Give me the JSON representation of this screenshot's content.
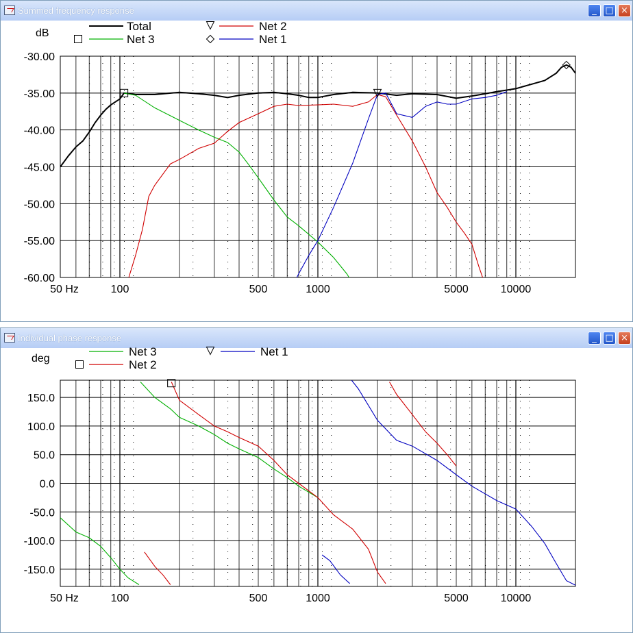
{
  "windows": [
    {
      "title": "Summed frequency response",
      "min": "_",
      "max": "□",
      "close": "×"
    },
    {
      "title": "Individual phase response",
      "min": "_",
      "max": "□",
      "close": "×"
    }
  ],
  "chart_data": [
    {
      "type": "line",
      "ylabel": "dB",
      "x_scale": "log",
      "xlim": [
        50,
        20000
      ],
      "ylim": [
        -60,
        -30
      ],
      "yticks": [
        "-30.00",
        "-35.00",
        "-40.00",
        "-45.00",
        "-50.00",
        "-55.00",
        "-60.00"
      ],
      "ytick_values": [
        -30,
        -35,
        -40,
        -45,
        -50,
        -55,
        -60
      ],
      "xticks": [
        "50 Hz",
        "100",
        "500",
        "1000",
        "5000",
        "10000"
      ],
      "xtick_values": [
        50,
        100,
        500,
        1000,
        5000,
        10000
      ],
      "grid": true,
      "legend_placement": "top",
      "series": [
        {
          "name": "Total",
          "color": "#000000",
          "marker": "none",
          "points": [
            [
              50,
              -45
            ],
            [
              55,
              -43.5
            ],
            [
              60,
              -42.3
            ],
            [
              65,
              -41.5
            ],
            [
              70,
              -40.3
            ],
            [
              75,
              -39
            ],
            [
              80,
              -38
            ],
            [
              85,
              -37.2
            ],
            [
              90,
              -36.6
            ],
            [
              100,
              -35.8
            ],
            [
              105,
              -35
            ],
            [
              120,
              -35.2
            ],
            [
              150,
              -35.2
            ],
            [
              200,
              -34.9
            ],
            [
              250,
              -35.1
            ],
            [
              300,
              -35.3
            ],
            [
              350,
              -35.6
            ],
            [
              400,
              -35.3
            ],
            [
              500,
              -35
            ],
            [
              600,
              -34.9
            ],
            [
              700,
              -35.1
            ],
            [
              800,
              -35.3
            ],
            [
              900,
              -35.6
            ],
            [
              1000,
              -35.6
            ],
            [
              1200,
              -35.2
            ],
            [
              1500,
              -34.9
            ],
            [
              2000,
              -35
            ],
            [
              2500,
              -35.3
            ],
            [
              3000,
              -35.1
            ],
            [
              4000,
              -35.2
            ],
            [
              5000,
              -35.7
            ],
            [
              6000,
              -35.4
            ],
            [
              7000,
              -35.1
            ],
            [
              8000,
              -34.8
            ],
            [
              9000,
              -34.6
            ],
            [
              10000,
              -34.4
            ],
            [
              12000,
              -33.8
            ],
            [
              14000,
              -33.3
            ],
            [
              16000,
              -32.3
            ],
            [
              17000,
              -31.5
            ],
            [
              18000,
              -31.2
            ],
            [
              19000,
              -31.5
            ],
            [
              20000,
              -32.3
            ]
          ]
        },
        {
          "name": "Net 3",
          "color": "#00b000",
          "marker": "square",
          "points": [
            [
              105,
              -35
            ],
            [
              120,
              -35.3
            ],
            [
              150,
              -37
            ],
            [
              200,
              -38.7
            ],
            [
              250,
              -40
            ],
            [
              300,
              -41
            ],
            [
              350,
              -41.7
            ],
            [
              400,
              -43
            ],
            [
              450,
              -44.8
            ],
            [
              500,
              -46.5
            ],
            [
              600,
              -49.5
            ],
            [
              700,
              -51.8
            ],
            [
              800,
              -53
            ],
            [
              1000,
              -55.2
            ],
            [
              1200,
              -57.3
            ],
            [
              1400,
              -59.5
            ],
            [
              1500,
              -60.8
            ]
          ]
        },
        {
          "name": "Net 2",
          "color": "#d00000",
          "marker": "triangle",
          "points": [
            [
              108,
              -61
            ],
            [
              120,
              -57
            ],
            [
              130,
              -53.5
            ],
            [
              140,
              -49
            ],
            [
              150,
              -47.5
            ],
            [
              180,
              -44.6
            ],
            [
              200,
              -44
            ],
            [
              250,
              -42.5
            ],
            [
              300,
              -41.8
            ],
            [
              350,
              -40.2
            ],
            [
              400,
              -39
            ],
            [
              500,
              -37.8
            ],
            [
              600,
              -36.8
            ],
            [
              700,
              -36.5
            ],
            [
              800,
              -36.7
            ],
            [
              1000,
              -36.6
            ],
            [
              1200,
              -36.5
            ],
            [
              1500,
              -36.8
            ],
            [
              1800,
              -36.2
            ],
            [
              2000,
              -35.2
            ],
            [
              2200,
              -35.5
            ],
            [
              2500,
              -38
            ],
            [
              3000,
              -41.5
            ],
            [
              3500,
              -45
            ],
            [
              4000,
              -48.5
            ],
            [
              4500,
              -50.5
            ],
            [
              5000,
              -52.5
            ],
            [
              5500,
              -54
            ],
            [
              6000,
              -55.5
            ],
            [
              6500,
              -58.5
            ],
            [
              7000,
              -61
            ]
          ]
        },
        {
          "name": "Net 1",
          "color": "#0000c0",
          "marker": "diamond",
          "points": [
            [
              750,
              -61
            ],
            [
              800,
              -59.5
            ],
            [
              900,
              -57
            ],
            [
              1000,
              -55
            ],
            [
              1200,
              -50.5
            ],
            [
              1500,
              -44.5
            ],
            [
              1800,
              -38.5
            ],
            [
              2000,
              -35.2
            ],
            [
              2200,
              -35
            ],
            [
              2500,
              -37.8
            ],
            [
              3000,
              -38.3
            ],
            [
              3500,
              -36.8
            ],
            [
              4000,
              -36.2
            ],
            [
              4500,
              -36.5
            ],
            [
              5000,
              -36.5
            ],
            [
              6000,
              -35.8
            ],
            [
              7000,
              -35.6
            ],
            [
              8000,
              -35.3
            ],
            [
              9000,
              -34.8
            ]
          ]
        }
      ]
    },
    {
      "type": "line",
      "ylabel": "deg",
      "x_scale": "log",
      "xlim": [
        50,
        20000
      ],
      "ylim": [
        -180,
        180
      ],
      "yticks": [
        "150.0",
        "100.0",
        "50.0",
        "0.0",
        "-50.0",
        "-100.0",
        "-150.0"
      ],
      "ytick_values": [
        150,
        100,
        50,
        0,
        -50,
        -100,
        -150
      ],
      "xticks": [
        "50 Hz",
        "100",
        "500",
        "1000",
        "5000",
        "10000"
      ],
      "xtick_values": [
        50,
        100,
        500,
        1000,
        5000,
        10000
      ],
      "grid": true,
      "legend_placement": "top",
      "series": [
        {
          "name": "Net 3",
          "color": "#00b000",
          "marker": "none",
          "segments": [
            [
              [
                50,
                -60
              ],
              [
                60,
                -85
              ],
              [
                70,
                -95
              ],
              [
                80,
                -110
              ],
              [
                90,
                -130
              ],
              [
                100,
                -150
              ],
              [
                110,
                -165
              ],
              [
                125,
                -177
              ]
            ],
            [
              [
                127,
                177
              ],
              [
                150,
                150
              ],
              [
                180,
                130
              ],
              [
                200,
                115
              ],
              [
                250,
                100
              ],
              [
                300,
                85
              ],
              [
                350,
                70
              ],
              [
                400,
                60
              ],
              [
                500,
                45
              ],
              [
                600,
                25
              ],
              [
                700,
                10
              ],
              [
                800,
                -5
              ],
              [
                1000,
                -25
              ]
            ]
          ]
        },
        {
          "name": "Net 2",
          "color": "#d00000",
          "marker": "square",
          "segments": [
            [
              [
                133,
                -120
              ],
              [
                150,
                -145
              ],
              [
                165,
                -160
              ],
              [
                180,
                -177
              ]
            ],
            [
              [
                182,
                177
              ],
              [
                200,
                145
              ],
              [
                250,
                120
              ],
              [
                300,
                100
              ],
              [
                350,
                90
              ],
              [
                400,
                80
              ],
              [
                500,
                65
              ],
              [
                600,
                40
              ],
              [
                700,
                15
              ],
              [
                800,
                0
              ],
              [
                1000,
                -25
              ],
              [
                1200,
                -55
              ],
              [
                1500,
                -80
              ],
              [
                1800,
                -115
              ],
              [
                2000,
                -155
              ],
              [
                2200,
                -175
              ]
            ],
            [
              [
                2300,
                177
              ],
              [
                2500,
                155
              ],
              [
                3000,
                120
              ],
              [
                3500,
                90
              ],
              [
                4000,
                70
              ],
              [
                4500,
                50
              ],
              [
                5000,
                30
              ]
            ]
          ]
        },
        {
          "name": "Net 1",
          "color": "#0000c0",
          "marker": "triangle",
          "segments": [
            [
              [
                1050,
                -125
              ],
              [
                1150,
                -135
              ],
              [
                1300,
                -160
              ],
              [
                1450,
                -175
              ]
            ],
            [
              [
                1480,
                180
              ],
              [
                1600,
                165
              ],
              [
                2000,
                110
              ],
              [
                2500,
                75
              ],
              [
                3000,
                65
              ],
              [
                4000,
                40
              ],
              [
                5000,
                15
              ],
              [
                6000,
                -5
              ],
              [
                8000,
                -30
              ],
              [
                10000,
                -45
              ],
              [
                12000,
                -75
              ],
              [
                14000,
                -105
              ],
              [
                16000,
                -140
              ],
              [
                18000,
                -170
              ],
              [
                20000,
                -178
              ]
            ]
          ]
        }
      ]
    }
  ]
}
